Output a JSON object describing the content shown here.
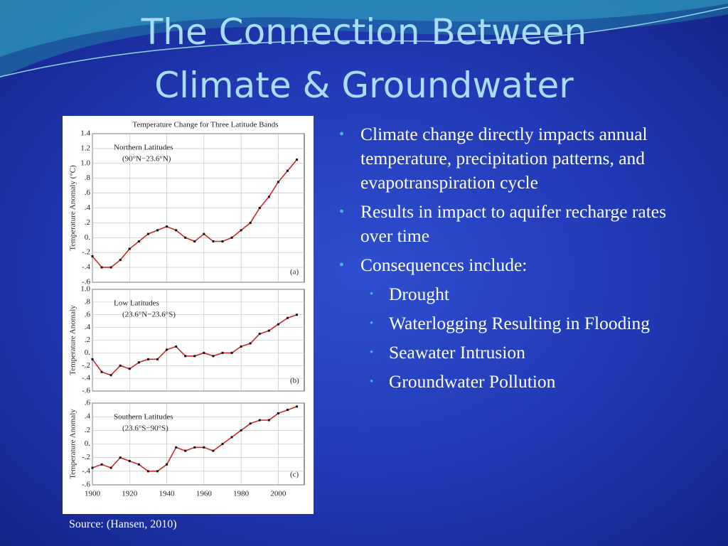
{
  "slide": {
    "title": [
      "The Connection Between",
      "Climate & Groundwater"
    ],
    "bullets": [
      {
        "text": "Climate change directly impacts annual temperature, precipitation patterns, and evapotranspiration cycle"
      },
      {
        "text": "Results in impact to aquifer recharge rates over time"
      },
      {
        "text": "Consequences include:",
        "sub": [
          "Drought",
          "Waterlogging Resulting in Flooding",
          "Seawater Intrusion",
          "Groundwater Pollution"
        ]
      }
    ],
    "source": "Source: (Hansen, 2010)"
  },
  "chart_data": [
    {
      "type": "line",
      "title": "Temperature Change for Three Latitude Bands",
      "y_label": "Temperature Anomaly (°C)",
      "annotations": [
        "Northern Latitudes",
        "(90°N−23.6°N)",
        "(a)"
      ],
      "x": [
        1900,
        1905,
        1910,
        1915,
        1920,
        1925,
        1930,
        1935,
        1940,
        1945,
        1950,
        1955,
        1960,
        1965,
        1970,
        1975,
        1980,
        1985,
        1990,
        1995,
        2000,
        2005,
        2010
      ],
      "series": [
        {
          "color": "#d02828",
          "values": [
            -0.25,
            -0.4,
            -0.4,
            -0.3,
            -0.15,
            -0.05,
            0.05,
            0.1,
            0.15,
            0.1,
            0.0,
            -0.05,
            0.05,
            -0.05,
            -0.05,
            0.0,
            0.1,
            0.2,
            0.4,
            0.55,
            0.75,
            0.9,
            1.05
          ]
        }
      ],
      "xlim": [
        1900,
        2014
      ],
      "xticks": [
        1900,
        1920,
        1940,
        1960,
        1980,
        2000
      ],
      "ylim": [
        -0.6,
        1.4
      ],
      "yticks": [
        {
          "value": 1.4,
          "label": "1.4"
        },
        {
          "value": 1.2,
          "label": "1.2"
        },
        {
          "value": 1.0,
          "label": "1.0"
        },
        {
          "value": 0.8,
          "label": ".8"
        },
        {
          "value": 0.6,
          "label": ".6"
        },
        {
          "value": 0.4,
          "label": ".4"
        },
        {
          "value": 0.2,
          "label": ".2"
        },
        {
          "value": 0,
          "label": "0."
        },
        {
          "value": -0.2,
          "label": "-.2"
        },
        {
          "value": -0.4,
          "label": "-.4"
        },
        {
          "value": -0.6,
          "label": "-.6"
        }
      ],
      "grid": true
    },
    {
      "type": "line",
      "y_label": "Temperature Anomaly",
      "annotations": [
        "Low Latitudes",
        "(23.6°N−23.6°S)",
        "(b)"
      ],
      "x": [
        1900,
        1905,
        1910,
        1915,
        1920,
        1925,
        1930,
        1935,
        1940,
        1945,
        1950,
        1955,
        1960,
        1965,
        1970,
        1975,
        1980,
        1985,
        1990,
        1995,
        2000,
        2005,
        2010
      ],
      "series": [
        {
          "color": "#d02828",
          "values": [
            -0.1,
            -0.3,
            -0.35,
            -0.2,
            -0.25,
            -0.15,
            -0.1,
            -0.1,
            0.05,
            0.1,
            -0.05,
            -0.05,
            0.0,
            -0.05,
            0.0,
            0.0,
            0.1,
            0.15,
            0.3,
            0.35,
            0.45,
            0.55,
            0.6
          ]
        }
      ],
      "xlim": [
        1900,
        2014
      ],
      "xticks": [
        1900,
        1920,
        1940,
        1960,
        1980,
        2000
      ],
      "ylim": [
        -0.6,
        1.0
      ],
      "yticks": [
        {
          "value": 1.0,
          "label": "1.0"
        },
        {
          "value": 0.8,
          "label": ".8"
        },
        {
          "value": 0.6,
          "label": ".6"
        },
        {
          "value": 0.4,
          "label": ".4"
        },
        {
          "value": 0.2,
          "label": ".2"
        },
        {
          "value": 0,
          "label": "0."
        },
        {
          "value": -0.2,
          "label": "-.2"
        },
        {
          "value": -0.4,
          "label": "-.4"
        },
        {
          "value": -0.6,
          "label": "-.6"
        }
      ],
      "grid": true
    },
    {
      "type": "line",
      "y_label": "Temperature Anomaly",
      "annotations": [
        "Southern Latitudes",
        "(23.6°S−90°S)",
        "(c)"
      ],
      "x": [
        1900,
        1905,
        1910,
        1915,
        1920,
        1925,
        1930,
        1935,
        1940,
        1945,
        1950,
        1955,
        1960,
        1965,
        1970,
        1975,
        1980,
        1985,
        1990,
        1995,
        2000,
        2005,
        2010
      ],
      "series": [
        {
          "color": "#d02828",
          "values": [
            -0.35,
            -0.3,
            -0.35,
            -0.2,
            -0.25,
            -0.3,
            -0.4,
            -0.4,
            -0.3,
            -0.05,
            -0.1,
            -0.05,
            -0.05,
            -0.1,
            0.0,
            0.1,
            0.2,
            0.3,
            0.35,
            0.35,
            0.45,
            0.5,
            0.55
          ]
        }
      ],
      "xlim": [
        1900,
        2014
      ],
      "xticks": [
        1900,
        1920,
        1940,
        1960,
        1980,
        2000
      ],
      "ylim": [
        -0.6,
        0.6
      ],
      "yticks": [
        {
          "value": 0.6,
          "label": ".6"
        },
        {
          "value": 0.4,
          "label": ".4"
        },
        {
          "value": 0.2,
          "label": ".2"
        },
        {
          "value": 0,
          "label": "0."
        },
        {
          "value": -0.2,
          "label": "-.2"
        },
        {
          "value": -0.4,
          "label": "-.4"
        },
        {
          "value": -0.6,
          "label": "-.6"
        }
      ],
      "grid": true
    }
  ]
}
